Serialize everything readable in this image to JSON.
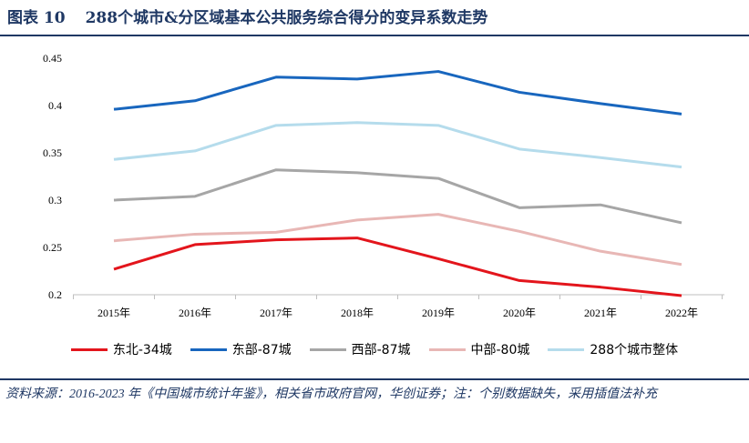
{
  "header": {
    "figure_no": "图表 10",
    "title": "288个城市&分区域基本公共服务综合得分的变异系数走势"
  },
  "footer": {
    "source": "资料来源：2016-2023 年《中国城市统计年鉴》，相关省市政府官网，华创证券；注：个别数据缺失，采用插值法补充"
  },
  "chart_data": {
    "type": "line",
    "title": "288个城市&分区域基本公共服务综合得分的变异系数走势",
    "categories": [
      "2015年",
      "2016年",
      "2017年",
      "2018年",
      "2019年",
      "2020年",
      "2021年",
      "2022年"
    ],
    "ylim": [
      0.2,
      0.45
    ],
    "yticks": [
      "0.2",
      "0.25",
      "0.3",
      "0.35",
      "0.4",
      "0.45"
    ],
    "ytick_values": [
      0.2,
      0.25,
      0.3,
      0.35,
      0.4,
      0.45
    ],
    "legend_position": "bottom",
    "grid": false,
    "series": [
      {
        "name": "东北-34城",
        "color": "#e3151c",
        "values": [
          0.227,
          0.253,
          0.258,
          0.26,
          0.238,
          0.215,
          0.208,
          0.199
        ]
      },
      {
        "name": "东部-87城",
        "color": "#1866be",
        "values": [
          0.396,
          0.405,
          0.43,
          0.428,
          0.436,
          0.414,
          0.402,
          0.391
        ]
      },
      {
        "name": "西部-87城",
        "color": "#a6a6a6",
        "values": [
          0.3,
          0.304,
          0.332,
          0.329,
          0.323,
          0.292,
          0.295,
          0.276
        ]
      },
      {
        "name": "中部-80城",
        "color": "#e8b7b5",
        "values": [
          0.257,
          0.264,
          0.266,
          0.279,
          0.285,
          0.267,
          0.246,
          0.232
        ]
      },
      {
        "name": "288个城市整体",
        "color": "#b5dcec",
        "values": [
          0.343,
          0.352,
          0.379,
          0.382,
          0.379,
          0.354,
          0.345,
          0.335
        ]
      }
    ]
  }
}
